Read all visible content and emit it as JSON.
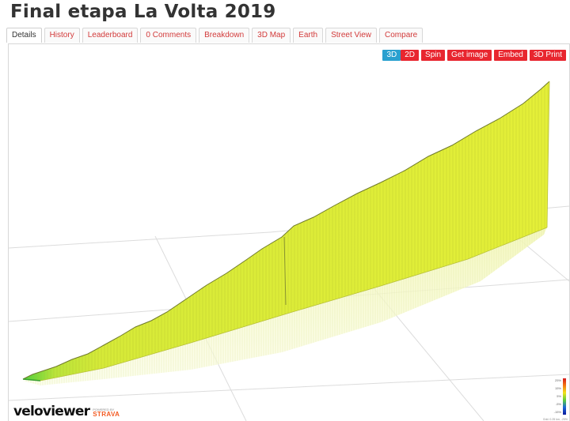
{
  "page": {
    "title": "Final etapa La Volta 2019"
  },
  "tabs": [
    {
      "label": "Details",
      "active": true
    },
    {
      "label": "History"
    },
    {
      "label": "Leaderboard"
    },
    {
      "label": "0 Comments"
    },
    {
      "label": "Breakdown"
    },
    {
      "label": "3D Map"
    },
    {
      "label": "Earth"
    },
    {
      "label": "Street View"
    },
    {
      "label": "Compare"
    }
  ],
  "toolbar": {
    "mode_3d": "3D",
    "mode_2d": "2D",
    "spin": "Spin",
    "get_image": "Get image",
    "embed": "Embed",
    "print_3d": "3D Print"
  },
  "brand": {
    "velo": "velo",
    "viewer": "viewer",
    "powered_by": "POWERED BY",
    "strava": "STRAVA"
  },
  "legend": {
    "labels": [
      "25%",
      "15%",
      "5%",
      "-5%",
      "-15%"
    ],
    "grid_note": "Grid: 0.25 km, -25%"
  },
  "colors": {
    "accent_red": "#e8262f",
    "active_blue": "#2aa0cf",
    "profile_yellow": "#e4ef38",
    "profile_start_green": "#49d13e"
  }
}
